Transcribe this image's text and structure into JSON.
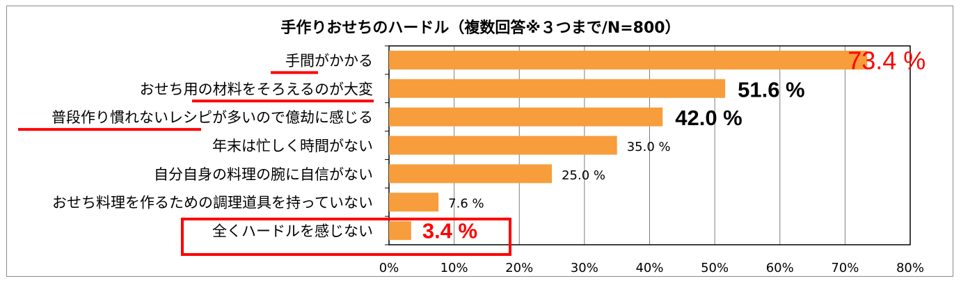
{
  "chart_data": {
    "type": "bar",
    "orientation": "horizontal",
    "title": "手作りおせちのハードル（複数回答※３つまで/N=800）",
    "categories": [
      "手間がかかる",
      "おせち用の材料をそろえるのが大変",
      "普段作り慣れないレシピが多いので億劫に感じる",
      "年末は忙しく時間がない",
      "自分自身の料理の腕に自信がない",
      "おせち料理を作るための調理道具を持っていない",
      "全くハードルを感じない"
    ],
    "values": [
      73.4,
      51.6,
      42.0,
      35.0,
      25.0,
      7.6,
      3.4
    ],
    "data_labels": [
      "73.4 %",
      "51.6 %",
      "42.0 %",
      "35.0 %",
      "25.0 %",
      "7.6 %",
      "3.4 %"
    ],
    "xlim": [
      0,
      80
    ],
    "x_ticks": [
      "0%",
      "10%",
      "20%",
      "30%",
      "40%",
      "50%",
      "60%",
      "70%",
      "80%"
    ],
    "grid": "vertical",
    "bar_color": "#f79d3c",
    "highlight_color": "#ff0000",
    "label_styles": [
      "red-xl",
      "big",
      "big",
      "normal",
      "normal",
      "normal",
      "red"
    ],
    "underlined_categories": [
      0,
      1,
      2
    ],
    "boxed_categories": [
      6
    ]
  }
}
